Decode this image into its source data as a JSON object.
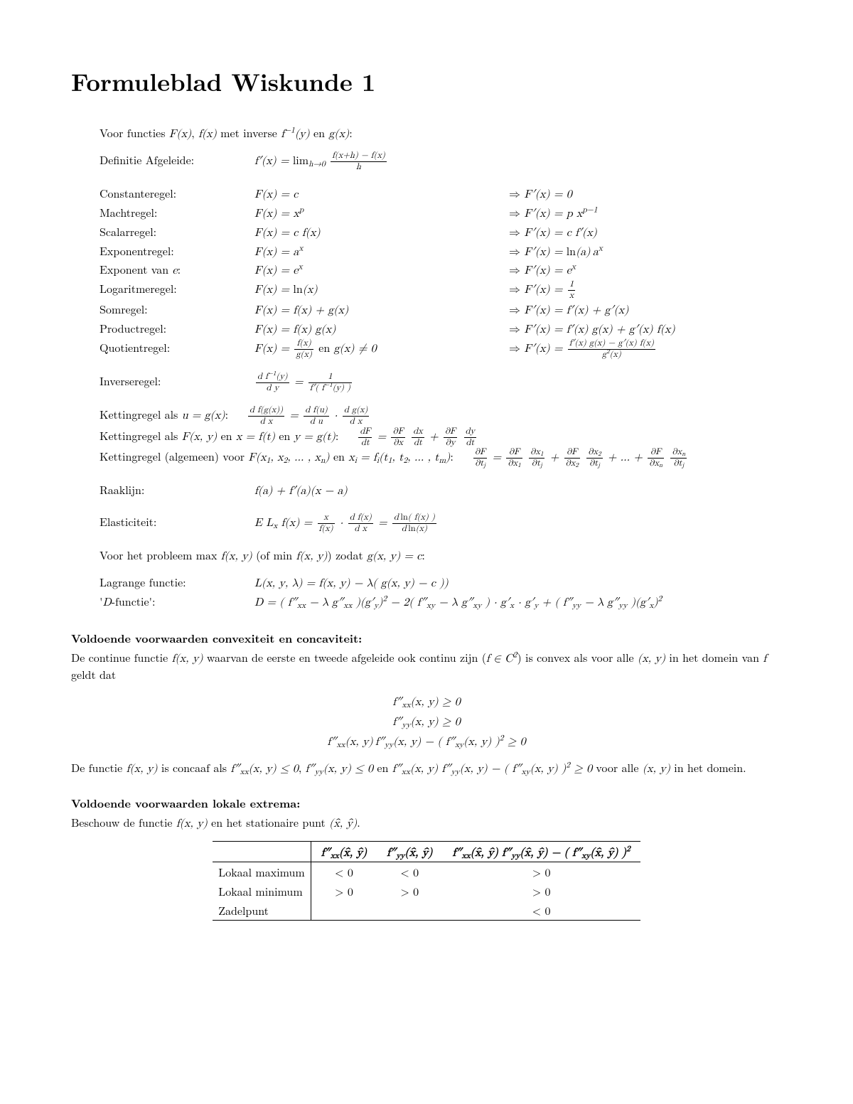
{
  "title": "Formuleblad Wiskunde 1",
  "intro": "Voor functies <span class='math'>F(x)</span>, <span class='math'>f(x)</span> met inverse <span class='math'>f<sup>&minus;1</sup>(y)</span> en <span class='math'>g(x)</span>:",
  "defn_label": "Definitie Afgeleide:",
  "defn_expr": "<span class='math'>f&prime;(x) = <span class='rm'>lim</span><sub>h&rarr;0</sub> <span class='frac'><span class='num'>f(x+h) &minus; f(x)</span><span class='den'>h</span></span></span>",
  "rules": [
    {
      "label": "Constanteregel:",
      "mid": "<span class='math'>F(x) = c</span>",
      "rhs": "<span class='math arrow'>F&prime;(x) = 0</span>"
    },
    {
      "label": "Machtregel:",
      "mid": "<span class='math'>F(x) = x<sup>p</sup></span>",
      "rhs": "<span class='math arrow'>F&prime;(x) = p x<sup>p&minus;1</sup></span>"
    },
    {
      "label": "Scalarregel:",
      "mid": "<span class='math'>F(x) = c f(x)</span>",
      "rhs": "<span class='math arrow'>F&prime;(x) = c f&prime;(x)</span>"
    },
    {
      "label": "Exponentregel:",
      "mid": "<span class='math'>F(x) = a<sup>x</sup></span>",
      "rhs": "<span class='math arrow'>F&prime;(x) = <span class='rm'>ln</span>(a)&#8201;a<sup>x</sup></span>"
    },
    {
      "label": "Exponent van <span class='math'>e</span>:",
      "mid": "<span class='math'>F(x) = e<sup>x</sup></span>",
      "rhs": "<span class='math arrow'>F&prime;(x) = e<sup>x</sup></span>"
    },
    {
      "label": "Logaritmeregel:",
      "mid": "<span class='math'>F(x) = <span class='rm'>ln</span>(x)</span>",
      "rhs": "<span class='math arrow'>F&prime;(x) = <span class='frac'><span class='num'>1</span><span class='den'>x</span></span></span>"
    },
    {
      "label": "Somregel:",
      "mid": "<span class='math'>F(x) = f(x) + g(x)</span>",
      "rhs": "<span class='math arrow'>F&prime;(x) = f&prime;(x) + g&prime;(x)</span>"
    },
    {
      "label": "Productregel:",
      "mid": "<span class='math'>F(x) = f(x) g(x)</span>",
      "rhs": "<span class='math arrow'>F&prime;(x) = f&prime;(x) g(x) + g&prime;(x) f(x)</span>"
    },
    {
      "label": "Quotientregel:",
      "mid": "<span class='math'>F(x) = <span class='frac'><span class='num'>f(x)</span><span class='den'>g(x)</span></span></span> <span class='rm'>en</span> <span class='math'>g(x) &ne; 0</span>",
      "rhs": "<span class='math arrow'>F&prime;(x) = <span class='frac'><span class='num'>f&prime;(x) g(x) &minus; g&prime;(x) f(x)</span><span class='den'>g<sup>2</sup>(x)</span></span></span>"
    }
  ],
  "inverse_label": "Inverseregel:",
  "inverse_expr": "<span class='math'><span class='frac'><span class='num'>d f<sup>&minus;1</sup>(y)</span><span class='den'>d y</span></span> = <span class='frac'><span class='num'>1</span><span class='den'>f&prime;( f<sup>&minus;1</sup>(y) )</span></span></span>",
  "chain": [
    {
      "left": "Kettingregel als <span class='math'>u = g(x)</span>:",
      "mid": "<span class='math'><span class='frac'><span class='num'>d f(g(x))</span><span class='den'>d x</span></span> = <span class='frac'><span class='num'>d f(u)</span><span class='den'>d u</span></span> &middot; <span class='frac'><span class='num'>d g(x)</span><span class='den'>d x</span></span></span>",
      "right": ""
    },
    {
      "left": "Kettingregel als <span class='math'>F(x, y)</span> en <span class='math'>x = f(t)</span> en <span class='math'>y = g(t)</span>:",
      "mid": "",
      "right": "<span class='math'><span class='frac'><span class='num'>dF</span><span class='den'>dt</span></span> = <span class='frac'><span class='num'>&part;F</span><span class='den'>&part;x</span></span> <span class='frac'><span class='num'>dx</span><span class='den'>dt</span></span> + <span class='frac'><span class='num'>&part;F</span><span class='den'>&part;y</span></span> <span class='frac'><span class='num'>dy</span><span class='den'>dt</span></span></span>"
    },
    {
      "left": "Kettingregel (algemeen) voor <span class='math'>F(x<sub>1</sub>, x<sub>2</sub>, &hellip; , x<sub>n</sub>)</span> en <span class='math'>x<sub>i</sub> = f<sub>i</sub>(t<sub>1</sub>, t<sub>2</sub>, &hellip; , t<sub>m</sub>)</span>:",
      "mid": "",
      "right": "<span class='math'><span class='frac'><span class='num'>&part;F</span><span class='den'>&part;t<sub>j</sub></span></span> = <span class='frac'><span class='num'>&part;F</span><span class='den'>&part;x<sub>1</sub></span></span> <span class='frac'><span class='num'>&part;x<sub>1</sub></span><span class='den'>&part;t<sub>j</sub></span></span> + <span class='frac'><span class='num'>&part;F</span><span class='den'>&part;x<sub>2</sub></span></span> <span class='frac'><span class='num'>&part;x<sub>2</sub></span><span class='den'>&part;t<sub>j</sub></span></span> + &hellip; + <span class='frac'><span class='num'>&part;F</span><span class='den'>&part;x<sub>n</sub></span></span> <span class='frac'><span class='num'>&part;x<sub>n</sub></span><span class='den'>&part;t<sub>j</sub></span></span></span>"
    }
  ],
  "tangent_label": "Raaklijn:",
  "tangent_expr": "<span class='math'>f(a) + f&prime;(a)(x &minus; a)</span>",
  "elastic_label": "Elasticiteit:",
  "elastic_expr": "<span class='math'>E L<sub>x</sub> f(x) = <span class='frac'><span class='num'>x</span><span class='den'>f(x)</span></span> &middot; <span class='frac'><span class='num'>d f(x)</span><span class='den'>d x</span></span> = <span class='frac'><span class='num'>d&thinsp;<span class='rm'>ln</span>( f(x) )</span><span class='den'>d&thinsp;<span class='rm'>ln</span>(x)</span></span></span>",
  "problem_intro": "Voor het probleem <span class='math'><span class='rm'>max</span> f(x, y)</span> (of <span class='math'><span class='rm'>min</span> f(x, y)</span>) zodat <span class='math'>g(x, y) = c</span>:",
  "opt": [
    {
      "label": "Lagrange functie:",
      "expr": "<span class='math'>L(x, y, &lambda;) = f(x, y) &minus; &lambda;( g(x, y) &minus; c ))</span>"
    },
    {
      "label": "'<span class='math'>D</span>-functie':",
      "expr": "<span class='math'>D = ( f&Prime;<sub>xx</sub> &minus; &lambda; g&Prime;<sub>xx</sub> )(g&prime;<sub>y</sub>)<sup>2</sup> &minus; 2( f&Prime;<sub>xy</sub> &minus; &lambda; g&Prime;<sub>xy</sub> ) &middot; g&prime;<sub>x</sub> &middot; g&prime;<sub>y</sub> + ( f&Prime;<sub>yy</sub> &minus; &lambda; g&Prime;<sub>yy</sub> )(g&prime;<sub>x</sub>)<sup>2</sup></span>"
    }
  ],
  "convex_head": "Voldoende voorwaarden convexiteit en concaviteit:",
  "convex_para": "De continue functie <span class='math'>f(x, y)</span> waarvan de eerste en tweede afgeleide ook continu zijn (<span class='math'>f &isin; C<sup>2</sup></span>) is convex als voor alle <span class='math'>(x, y)</span> in het domein van <span class='math'>f</span> geldt dat",
  "convex_eq1": "<span class='math'>f&Prime;<sub>xx</sub>(x, y) &ge; 0</span>",
  "convex_eq2": "<span class='math'>f&Prime;<sub>yy</sub>(x, y) &ge; 0</span>",
  "convex_eq3": "<span class='math'>f&Prime;<sub>xx</sub>(x, y)&thinsp;f&Prime;<sub>yy</sub>(x, y) &minus; ( f&Prime;<sub>xy</sub>(x, y) )<sup>2</sup> &ge; 0</span>",
  "concave_para": "De functie <span class='math'>f(x, y)</span> is concaaf als <span class='math'>f&Prime;<sub>xx</sub>(x, y) &le; 0</span>, <span class='math'>f&Prime;<sub>yy</sub>(x, y) &le; 0</span> en <span class='math'>f&Prime;<sub>xx</sub>(x, y) f&Prime;<sub>yy</sub>(x, y) &minus; ( f&Prime;<sub>xy</sub>(x, y) )<sup>2</sup> &ge; 0</span> voor alle <span class='math'>(x, y)</span> in het domein.",
  "extrema_head": "Voldoende voorwaarden lokale extrema:",
  "extrema_para": "Beschouw de functie <span class='math'>f(x, y)</span> en het stationaire punt <span class='math'>(x&#770;, y&#770;)</span>.",
  "table": {
    "head": [
      "",
      "<span class='math'>f&Prime;<sub>xx</sub>(x&#770;, y&#770;)</span>",
      "<span class='math'>f&Prime;<sub>yy</sub>(x&#770;, y&#770;)</span>",
      "<span class='math'>f&Prime;<sub>xx</sub>(x&#770;, y&#770;) f&Prime;<sub>yy</sub>(x&#770;, y&#770;) &minus; ( f&Prime;<sub>xy</sub>(x&#770;, y&#770;) )<sup>2</sup></span>"
    ],
    "rows": [
      [
        "Lokaal maximum",
        "&lt; 0",
        "&lt; 0",
        "&gt; 0"
      ],
      [
        "Lokaal minimum",
        "&gt; 0",
        "&gt; 0",
        "&gt; 0"
      ],
      [
        "Zadelpunt",
        "",
        "",
        "&lt; 0"
      ]
    ]
  }
}
